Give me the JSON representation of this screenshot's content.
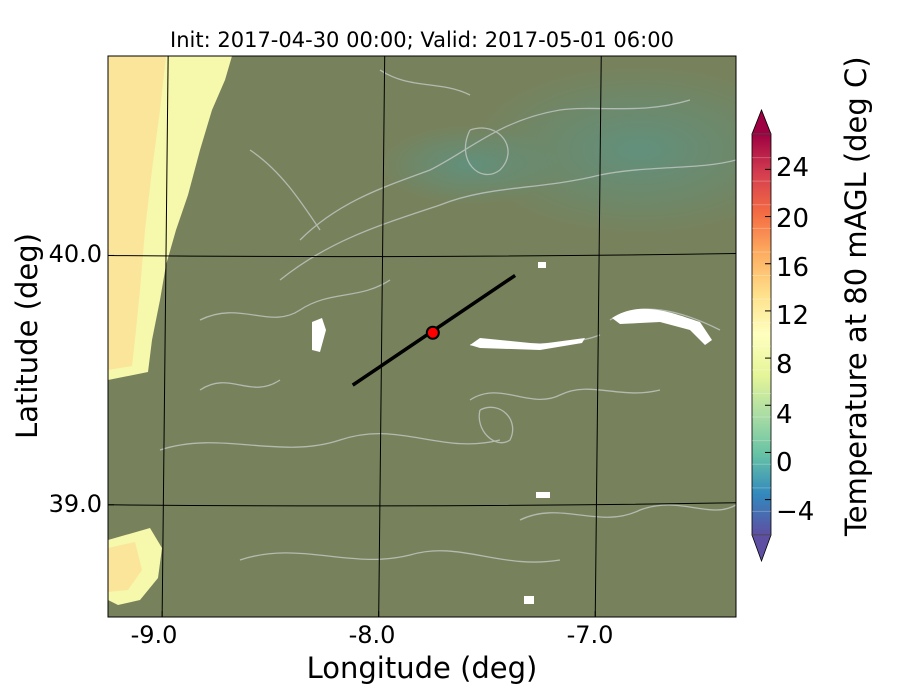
{
  "title": "Init: 2017-04-30 00:00; Valid: 2017-05-01 06:00",
  "xlabel": "Longitude (deg)",
  "ylabel": "Latitude (deg)",
  "colorbar": {
    "label": "Temperature at 80 mAGL (deg C)",
    "range": [
      -7,
      27
    ],
    "step": 2,
    "extend": "both",
    "ticks": [
      "24",
      "20",
      "16",
      "12",
      "8",
      "4",
      "0",
      "−4"
    ],
    "tick_values": [
      24,
      20,
      16,
      12,
      8,
      4,
      0,
      -4
    ],
    "colormap": [
      "#5e4fa2",
      "#3288bd",
      "#66c2a5",
      "#abdda4",
      "#e6f598",
      "#ffffbf",
      "#fee08b",
      "#fdae61",
      "#f46d43",
      "#d53e4f",
      "#9e0142"
    ]
  },
  "map": {
    "xlim": [
      -9.25,
      -6.35
    ],
    "ylim": [
      38.55,
      40.8
    ],
    "x_ticks": [
      "-9.0",
      "-8.0",
      "-7.0"
    ],
    "x_tick_values": [
      -9.0,
      -8.0,
      -7.0
    ],
    "y_ticks": [
      "40.0",
      "39.0"
    ],
    "y_tick_values": [
      40.0,
      39.0
    ],
    "land_color": "#77825c",
    "ocean_color": "#fbe59b",
    "coast_color": "#f6f8ab",
    "cool_region_color": "#5e9382",
    "contour_color": "#c8cdcc",
    "grid": true,
    "transect": {
      "start": [
        -8.12,
        39.48
      ],
      "end": [
        -7.37,
        39.92
      ],
      "color": "#000000"
    },
    "marker": {
      "lon": -7.75,
      "lat": 39.69,
      "color": "#ff0000"
    }
  }
}
